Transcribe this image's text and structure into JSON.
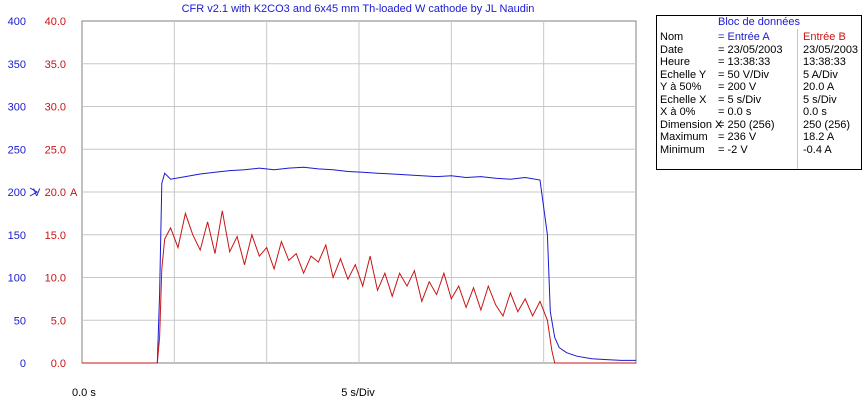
{
  "title": "CFR v2.1 with K2CO3 and 6x45 mm Th-loaded W cathode by JL Naudin",
  "colors": {
    "channel_a": "#1a1ad0",
    "channel_b": "#c81414",
    "grid": "#c8c8c8",
    "frame": "#808080"
  },
  "x_axis": {
    "origin_label": "0.0 s",
    "scale_label": "5 s/Div"
  },
  "y_axis_a": {
    "ticks": [
      "400",
      "350",
      "300",
      "250",
      "200",
      "150",
      "100",
      "50",
      "0"
    ],
    "unit": "V"
  },
  "y_axis_b": {
    "ticks": [
      "40.0",
      "35.0",
      "30.0",
      "25.0",
      "20.0",
      "15.0",
      "10.0",
      "5.0",
      "0.0"
    ],
    "unit": "A"
  },
  "info_panel": {
    "title": "Bloc de données",
    "rows": [
      {
        "label": "Nom",
        "a": "= Entrée A",
        "b": "Entrée B",
        "header": true
      },
      {
        "label": "Date",
        "a": "= 23/05/2003",
        "b": "23/05/2003"
      },
      {
        "label": "Heure",
        "a": "= 13:38:33",
        "b": "13:38:33"
      },
      {
        "label": "Echelle Y",
        "a": "=    50  V/Div",
        "b": "  5  A/Div"
      },
      {
        "label": "Y à 50%",
        "a": "=  200   V",
        "b": "20.0 A"
      },
      {
        "label": "Echelle X",
        "a": "=     5   s/Div",
        "b": "  5  s/Div"
      },
      {
        "label": "X à 0%",
        "a": "=     0.0 s",
        "b": "  0.0 s"
      },
      {
        "label": "Dimension X",
        "a": "= 250 (256)",
        "b": "250 (256)"
      },
      {
        "label": "Maximum",
        "a": "=  236   V",
        "b": "18.2 A"
      },
      {
        "label": "Minimum",
        "a": "=   -2   V",
        "b": "-0.4 A"
      }
    ]
  },
  "chart_data": {
    "type": "line",
    "title": "CFR v2.1 with K2CO3 and 6x45 mm Th-loaded W cathode by JL Naudin",
    "xlabel": "5 s/Div",
    "xlim": [
      0,
      37.5
    ],
    "grid": true,
    "series": [
      {
        "name": "Entrée A",
        "axis": "left",
        "ylim": [
          0,
          400
        ],
        "x": [
          0,
          2,
          4,
          5.1,
          5.25,
          5.4,
          5.6,
          6,
          7,
          8,
          9,
          10,
          11,
          12,
          13,
          14,
          15,
          16,
          17,
          18,
          19,
          20,
          21,
          22,
          23,
          24,
          25,
          26,
          27,
          28,
          29,
          30,
          31,
          31.5,
          31.7,
          32,
          32.3,
          32.8,
          33.5,
          34.5,
          35.5,
          36.5,
          37.5
        ],
        "values": [
          0,
          0,
          0,
          0,
          80,
          210,
          222,
          215,
          218,
          221,
          223,
          225,
          226,
          228,
          226,
          228,
          229,
          227,
          226,
          224,
          223,
          222,
          221,
          220,
          219,
          218,
          219,
          217,
          218,
          216,
          215,
          217,
          214,
          150,
          60,
          30,
          18,
          12,
          8,
          5,
          4,
          3,
          3
        ]
      },
      {
        "name": "Entrée B",
        "axis": "right",
        "ylim": [
          0,
          40
        ],
        "x": [
          0,
          2,
          4,
          5.1,
          5.25,
          5.4,
          5.6,
          6,
          6.5,
          7,
          7.5,
          8,
          8.5,
          9,
          9.5,
          10,
          10.5,
          11,
          11.5,
          12,
          12.5,
          13,
          13.5,
          14,
          14.5,
          15,
          15.5,
          16,
          16.5,
          17,
          17.5,
          18,
          18.5,
          19,
          19.5,
          20,
          20.5,
          21,
          21.5,
          22,
          22.5,
          23,
          23.5,
          24,
          24.5,
          25,
          25.5,
          26,
          26.5,
          27,
          27.5,
          28,
          28.5,
          29,
          29.5,
          30,
          30.5,
          31,
          31.5,
          31.8,
          32,
          33,
          34,
          35,
          36,
          37,
          37.5
        ],
        "values": [
          0,
          0,
          0,
          0,
          3,
          11,
          14.5,
          15.8,
          13.5,
          17.5,
          15,
          13.2,
          16.5,
          12.8,
          17.8,
          13,
          14.8,
          11.5,
          15,
          12.5,
          13.5,
          11,
          14.2,
          12,
          12.8,
          10.5,
          12.5,
          11.8,
          13.8,
          10,
          12.2,
          9.8,
          11.5,
          9,
          12.5,
          8.5,
          10.5,
          7.8,
          10.5,
          9,
          10.8,
          7.2,
          9.5,
          8,
          10.5,
          7.5,
          9,
          6.5,
          8.8,
          6.2,
          9,
          6.8,
          5.5,
          8.2,
          6,
          7.5,
          5.5,
          7.2,
          5,
          1.5,
          0,
          0,
          0,
          0,
          0,
          0,
          0
        ]
      }
    ]
  }
}
